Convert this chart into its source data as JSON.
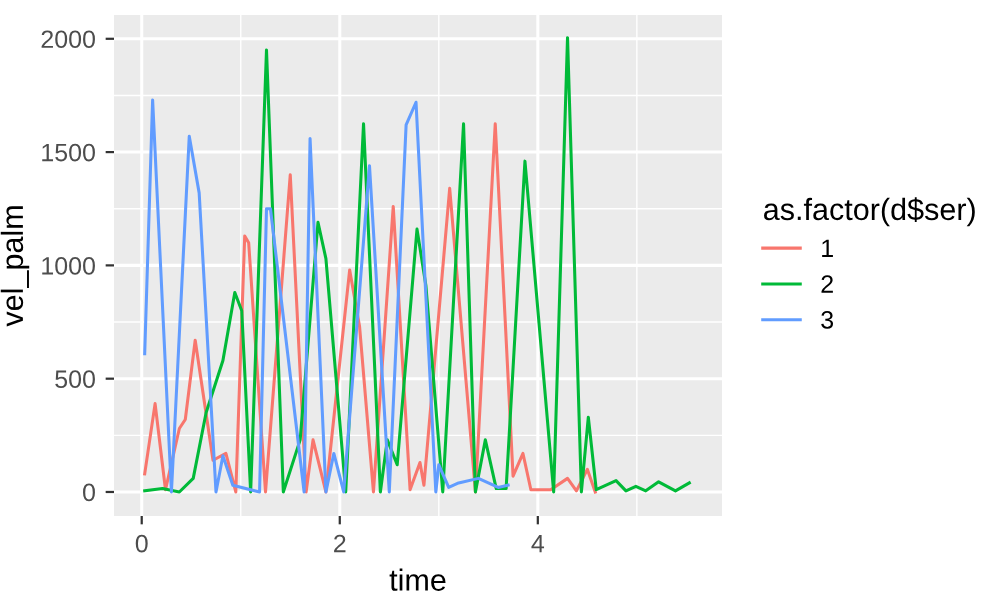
{
  "chart_data": {
    "type": "line",
    "xlabel": "time",
    "ylabel": "vel_palm",
    "legend_title": "as.factor(d$ser)",
    "xlim": [
      -0.28,
      5.86
    ],
    "ylim": [
      -106,
      2105
    ],
    "xticks": [
      0,
      2,
      4
    ],
    "yticks": [
      0,
      500,
      1000,
      1500,
      2000
    ],
    "grid": true,
    "legend": "right",
    "series": [
      {
        "name": "1",
        "color": "#f8766d",
        "x": [
          0.03,
          0.135,
          0.24,
          0.38,
          0.44,
          0.54,
          0.72,
          0.85,
          0.95,
          1.04,
          1.08,
          1.25,
          1.5,
          1.66,
          1.73,
          1.86,
          2.1,
          2.2,
          2.34,
          2.54,
          2.71,
          2.81,
          2.85,
          3.11,
          3.37,
          3.57,
          3.75,
          3.85,
          3.93,
          4.13,
          4.3,
          4.39,
          4.5,
          4.58
        ],
        "values": [
          80,
          390,
          10,
          280,
          320,
          670,
          140,
          170,
          0,
          1130,
          1100,
          0,
          1400,
          0,
          230,
          0,
          980,
          730,
          0,
          1260,
          10,
          130,
          30,
          1340,
          0,
          1625,
          70,
          170,
          10,
          10,
          60,
          5,
          100,
          0
        ]
      },
      {
        "name": "2",
        "color": "#00ba38",
        "x": [
          0.03,
          0.21,
          0.38,
          0.52,
          0.65,
          0.82,
          0.94,
          1.01,
          1.1,
          1.26,
          1.43,
          1.6,
          1.78,
          1.86,
          2.06,
          2.24,
          2.41,
          2.48,
          2.58,
          2.78,
          2.87,
          3.04,
          3.25,
          3.37,
          3.47,
          3.58,
          3.68,
          3.87,
          4.16,
          4.3,
          4.44,
          4.51,
          4.59,
          4.79,
          4.89,
          4.99,
          5.09,
          5.22,
          5.39,
          5.53
        ],
        "values": [
          5,
          15,
          0,
          60,
          350,
          580,
          880,
          800,
          0,
          1950,
          0,
          230,
          1190,
          1030,
          0,
          1625,
          0,
          230,
          120,
          1160,
          910,
          0,
          1625,
          0,
          230,
          15,
          15,
          1460,
          0,
          2005,
          0,
          330,
          10,
          50,
          5,
          25,
          5,
          45,
          5,
          40
        ]
      },
      {
        "name": "3",
        "color": "#619cff",
        "x": [
          0.03,
          0.11,
          0.3,
          0.48,
          0.58,
          0.75,
          0.82,
          0.92,
          1.19,
          1.26,
          1.3,
          1.64,
          1.7,
          1.86,
          1.94,
          2.04,
          2.3,
          2.5,
          2.67,
          2.77,
          2.97,
          3.0,
          3.1,
          3.2,
          3.4,
          3.5,
          3.6,
          3.7
        ],
        "values": [
          610,
          1730,
          0,
          1570,
          1320,
          0,
          160,
          30,
          0,
          1250,
          1250,
          0,
          1560,
          0,
          170,
          0,
          1440,
          0,
          1620,
          1720,
          0,
          120,
          20,
          40,
          60,
          40,
          20,
          30
        ]
      }
    ]
  }
}
